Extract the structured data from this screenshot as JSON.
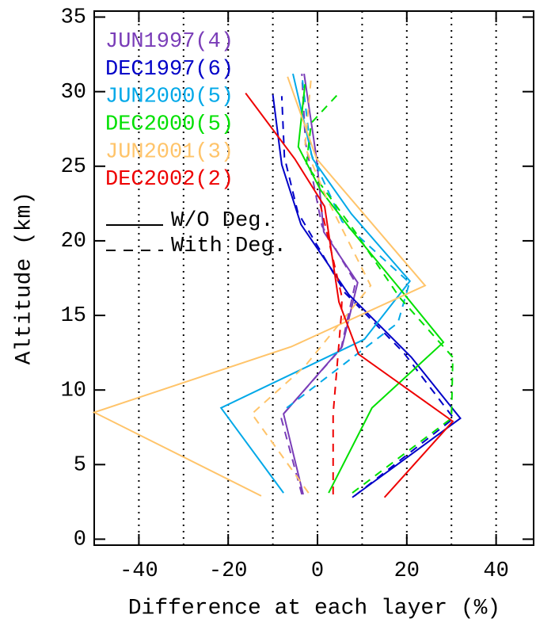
{
  "chart_data": {
    "type": "line",
    "x_label": "Difference at each layer (%)",
    "y_label": "Altitude (km)",
    "xlim": [
      -50,
      48.4
    ],
    "ylim": [
      -0.4,
      35.4
    ],
    "xticks": [
      -40,
      -20,
      0,
      20,
      40
    ],
    "yticks": [
      0,
      5,
      10,
      15,
      20,
      25,
      30,
      35
    ],
    "xgrid": [
      -40,
      -30,
      -20,
      -10,
      0,
      10,
      20,
      30,
      40
    ],
    "grid_style": "dotted",
    "legend_position": "upper left",
    "linestyle_legend": [
      {
        "label": "W/O Deg.",
        "dashed": false
      },
      {
        "label": "With Deg.",
        "dashed": true
      }
    ],
    "series": [
      {
        "name": "JUN1997(4)",
        "color": "#7a3db8",
        "without": {
          "x": [
            -3.2,
            -7.6,
            5.5,
            9,
            1.4,
            -0.2,
            -3
          ],
          "y": [
            3.0,
            8.4,
            12.9,
            17.2,
            20.6,
            25.5,
            31.2
          ]
        },
        "with": {
          "x": [
            -3.5,
            -8.2,
            5.3,
            8.5,
            1,
            -2.7,
            -3.5
          ],
          "y": [
            3.0,
            8.2,
            12.8,
            17.2,
            21,
            26.6,
            31.2
          ]
        }
      },
      {
        "name": "DEC1997(6)",
        "color": "#0000c8",
        "without": {
          "x": [
            7.8,
            32,
            21,
            7,
            -3.7,
            -8,
            -10
          ],
          "y": [
            2.8,
            8.1,
            12.2,
            16.4,
            21.1,
            25.1,
            29.8
          ]
        },
        "with": {
          "x": [
            8.3,
            30.5,
            19.3,
            6.2,
            -4.4,
            -7.4,
            -8
          ],
          "y": [
            2.9,
            8.1,
            12.5,
            16.5,
            21.9,
            25.6,
            29.7
          ]
        }
      },
      {
        "name": "JUN2000(5)",
        "color": "#00a8e8",
        "without": {
          "x": [
            -7.6,
            -21.6,
            10.5,
            20.7,
            7.6,
            -1.1,
            -5.5
          ],
          "y": [
            3.1,
            8.8,
            13.4,
            17.3,
            21.8,
            25.5,
            31.2
          ]
        },
        "with": {
          "x": [
            -6.9,
            18,
            20.6,
            5.5,
            -1.4,
            -3.5
          ],
          "y": [
            8.8,
            14.5,
            17.2,
            21.3,
            25.8,
            31.1
          ]
        }
      },
      {
        "name": "DEC2000(5)",
        "color": "#00e000",
        "without": {
          "x": [
            2.5,
            12.2,
            28.2,
            18.4,
            7.1,
            0.7,
            -4.3,
            -2.8
          ],
          "y": [
            3.1,
            8.8,
            13.2,
            16.8,
            20.9,
            23.4,
            26.3,
            30.5
          ]
        },
        "with": {
          "x": [
            7.8,
            30,
            30.3,
            18.4,
            8.2,
            -2.5,
            -1.4,
            4.8
          ],
          "y": [
            3.1,
            8.1,
            12.2,
            16.2,
            20.7,
            25.1,
            27.9,
            29.9
          ]
        }
      },
      {
        "name": "JUN2001(3)",
        "color": "#ffc46a",
        "without": {
          "x": [
            -12.6,
            -50,
            -5.9,
            24.1,
            -0.2,
            -6.7
          ],
          "y": [
            2.9,
            8.5,
            12.9,
            17,
            25.5,
            31
          ]
        },
        "with": {
          "x": [
            -2,
            -14.7,
            -2.8,
            11.9,
            2,
            -2.8,
            -1.4
          ],
          "y": [
            3.1,
            8.4,
            11.6,
            17,
            22.9,
            26.3,
            31
          ]
        }
      },
      {
        "name": "DEC2002(2)",
        "color": "#ee0000",
        "without": {
          "x": [
            15,
            30.3,
            9.2,
            4.8,
            1.6,
            -5.1,
            -16.1
          ],
          "y": [
            2.8,
            7.9,
            12.4,
            15.9,
            22.3,
            25.5,
            29.9
          ]
        },
        "with": {
          "x": [
            3.5,
            3.5,
            5.3,
            5.5,
            0.5
          ],
          "y": [
            3,
            8.4,
            14.9,
            16.2,
            22.6
          ]
        }
      }
    ]
  }
}
